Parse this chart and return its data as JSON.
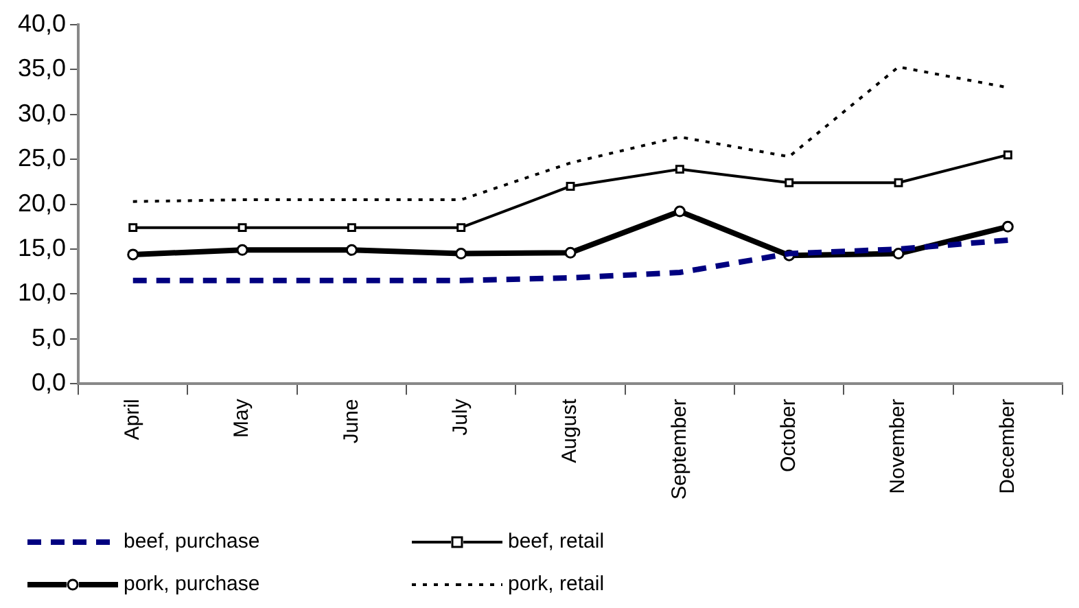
{
  "chart_data": {
    "type": "line",
    "categories": [
      "April",
      "May",
      "June",
      "July",
      "August",
      "September",
      "October",
      "November",
      "December"
    ],
    "series": [
      {
        "name": "beef, purchase",
        "color": "#000080",
        "line_style": "dashed",
        "marker": "none",
        "values": [
          11.5,
          11.5,
          11.5,
          11.5,
          11.8,
          12.4,
          14.5,
          15.0,
          16.0
        ]
      },
      {
        "name": "beef, retail",
        "color": "#000000",
        "line_style": "solid",
        "marker": "square",
        "values": [
          17.4,
          17.4,
          17.4,
          17.4,
          22.0,
          23.9,
          22.4,
          22.4,
          25.5
        ]
      },
      {
        "name": "pork, purchase",
        "color": "#000000",
        "line_style": "solid",
        "marker": "circle",
        "values": [
          14.4,
          14.9,
          14.9,
          14.5,
          14.6,
          19.2,
          14.3,
          14.5,
          17.5
        ]
      },
      {
        "name": "pork, retail",
        "color": "#000000",
        "line_style": "dotted",
        "marker": "none",
        "values": [
          20.3,
          20.5,
          20.5,
          20.5,
          24.6,
          27.5,
          25.3,
          35.3,
          33.0
        ]
      }
    ],
    "ylim": [
      0,
      40
    ],
    "yticks": [
      {
        "value": 0,
        "label": "0,0"
      },
      {
        "value": 5,
        "label": "5,0"
      },
      {
        "value": 10,
        "label": "10,0"
      },
      {
        "value": 15,
        "label": "15,0"
      },
      {
        "value": 20,
        "label": "20,0"
      },
      {
        "value": 25,
        "label": "25,0"
      },
      {
        "value": 30,
        "label": "30,0"
      },
      {
        "value": 35,
        "label": "35,0"
      },
      {
        "value": 40,
        "label": "40,0"
      }
    ],
    "grid": false,
    "legend": "bottom"
  }
}
